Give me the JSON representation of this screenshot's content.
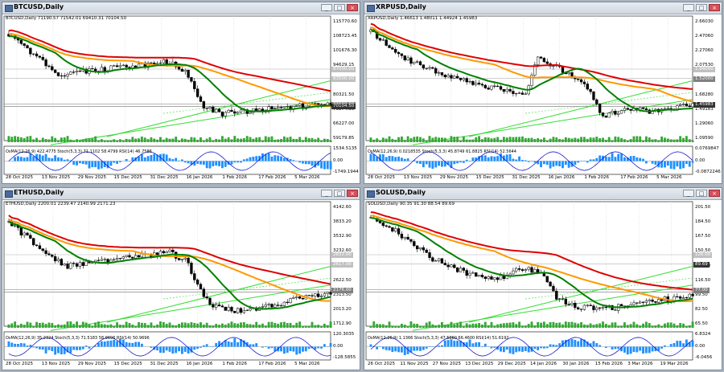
{
  "windows": [
    {
      "id": "btc",
      "title": "BTCUSD,Daily",
      "info": "BTCUSD,Daily  71190.57 71542.01 69410.31 70104.50",
      "indicator_info": "OsMA(12,26,9) 422.4775  Stoch(5,3,3) 71.1102 58.4799  RSI(14) 46.7586",
      "price_ticks": [
        "115770.60",
        "108723.45",
        "101676.30",
        "94629.15",
        "87582.00",
        "80321.50",
        "73274.35",
        "66227.00",
        "59179.85"
      ],
      "price_labels": [
        {
          "text": "87000.00",
          "color": "#c0c0c0"
        },
        {
          "text": "83500.00",
          "color": "#c0c0c0"
        },
        {
          "text": "73000.00",
          "color": "#808080"
        },
        {
          "text": "70104.50",
          "color": "#333333"
        }
      ],
      "ind_ticks": [
        "1534.5135",
        "0.00",
        "-1749.1944"
      ],
      "date_ticks": [
        "28 Oct 2025",
        "13 Nov 2025",
        "29 Nov 2025",
        "15 Dec 2025",
        "31 Dec 2025",
        "16 Jan 2026",
        "1 Feb 2026",
        "17 Feb 2026",
        "5 Mar 2026"
      ]
    },
    {
      "id": "xrp",
      "title": "XRPUSD,Daily",
      "info": "XRPUSD,Daily  1.46613 1.48011 1.44924 1.45983",
      "indicator_info": "OsMA(12,26,9) 0.0218535  Stoch(5,3,3) 45.8749 61.8825  RSI(14) 52.5644",
      "price_ticks": [
        "2.66030",
        "2.47060",
        "2.27060",
        "2.07530",
        "1.88060",
        "1.68280",
        "1.49183",
        "1.29060",
        "1.09590"
      ],
      "price_labels": [
        {
          "text": "1.94000",
          "color": "#c0c0c0"
        },
        {
          "text": "1.52000",
          "color": "#808080"
        },
        {
          "text": "1.45983",
          "color": "#333333"
        }
      ],
      "ind_ticks": [
        "0.0769847",
        "0.00",
        "-0.0872246"
      ],
      "date_ticks": [
        "28 Oct 2025",
        "13 Nov 2025",
        "29 Nov 2025",
        "15 Dec 2025",
        "31 Dec 2025",
        "16 Jan 2026",
        "1 Feb 2026",
        "17 Feb 2026",
        "5 Mar 2026"
      ]
    },
    {
      "id": "eth",
      "title": "ETHUSD,Daily",
      "info": "ETHUSD,Daily  2200.01 2239.47 2140.99 2171.23",
      "indicator_info": "OsMA(12,26,9) 35.2324  Stoch(5,3,3) 71.5183 58.9696  RSI(14) 50.9696",
      "price_ticks": [
        "4142.60",
        "3833.20",
        "3532.90",
        "3232.60",
        "2923.20",
        "2622.50",
        "2313.50",
        "2013.20",
        "1712.90"
      ],
      "price_labels": [
        {
          "text": "2832.00",
          "color": "#c0c0c0"
        },
        {
          "text": "2617.00",
          "color": "#c0c0c0"
        },
        {
          "text": "2176.00",
          "color": "#808080"
        }
      ],
      "ind_ticks": [
        "120.3035",
        "0.00",
        "-128.5855"
      ],
      "date_ticks": [
        "28 Oct 2025",
        "13 Nov 2025",
        "29 Nov 2025",
        "15 Dec 2025",
        "31 Dec 2025",
        "16 Jan 2026",
        "1 Feb 2026",
        "17 Feb 2026",
        "5 Mar 2026"
      ]
    },
    {
      "id": "sol",
      "title": "SOLUSD,Daily",
      "info": "SOLUSD,Daily  90.35 91.30 88.54 89.69",
      "indicator_info": "OsMA(12,26,9) 1.1366  Stoch(5,3,3) 47.5060 66.4600  RSI(14) 51.6192",
      "price_ticks": [
        "201.50",
        "184.50",
        "167.50",
        "150.50",
        "133.50",
        "116.50",
        "99.50",
        "82.50",
        "65.50"
      ],
      "price_labels": [
        {
          "text": "126.00",
          "color": "#c0c0c0"
        },
        {
          "text": "89.69",
          "color": "#333333"
        },
        {
          "text": "77.00",
          "color": "#808080"
        }
      ],
      "ind_ticks": [
        "6.8324",
        "0.00",
        "-6.0456"
      ],
      "date_ticks": [
        "26 Oct 2025",
        "11 Nov 2025",
        "27 Nov 2025",
        "13 Dec 2025",
        "29 Dec 2025",
        "14 Jan 2026",
        "30 Jan 2026",
        "15 Feb 2026",
        "3 Mar 2026",
        "19 Mar 2026"
      ]
    }
  ],
  "colors": {
    "sma200": "#e00000",
    "sma100": "#ff9800",
    "sma50": "#008000",
    "channel": "#33dd33",
    "candle_up": "#000000",
    "candle_down": "#000000",
    "macd_hist": "#1e90ff",
    "stoch_main": "#0000cc",
    "volume": "#33aa33"
  }
}
